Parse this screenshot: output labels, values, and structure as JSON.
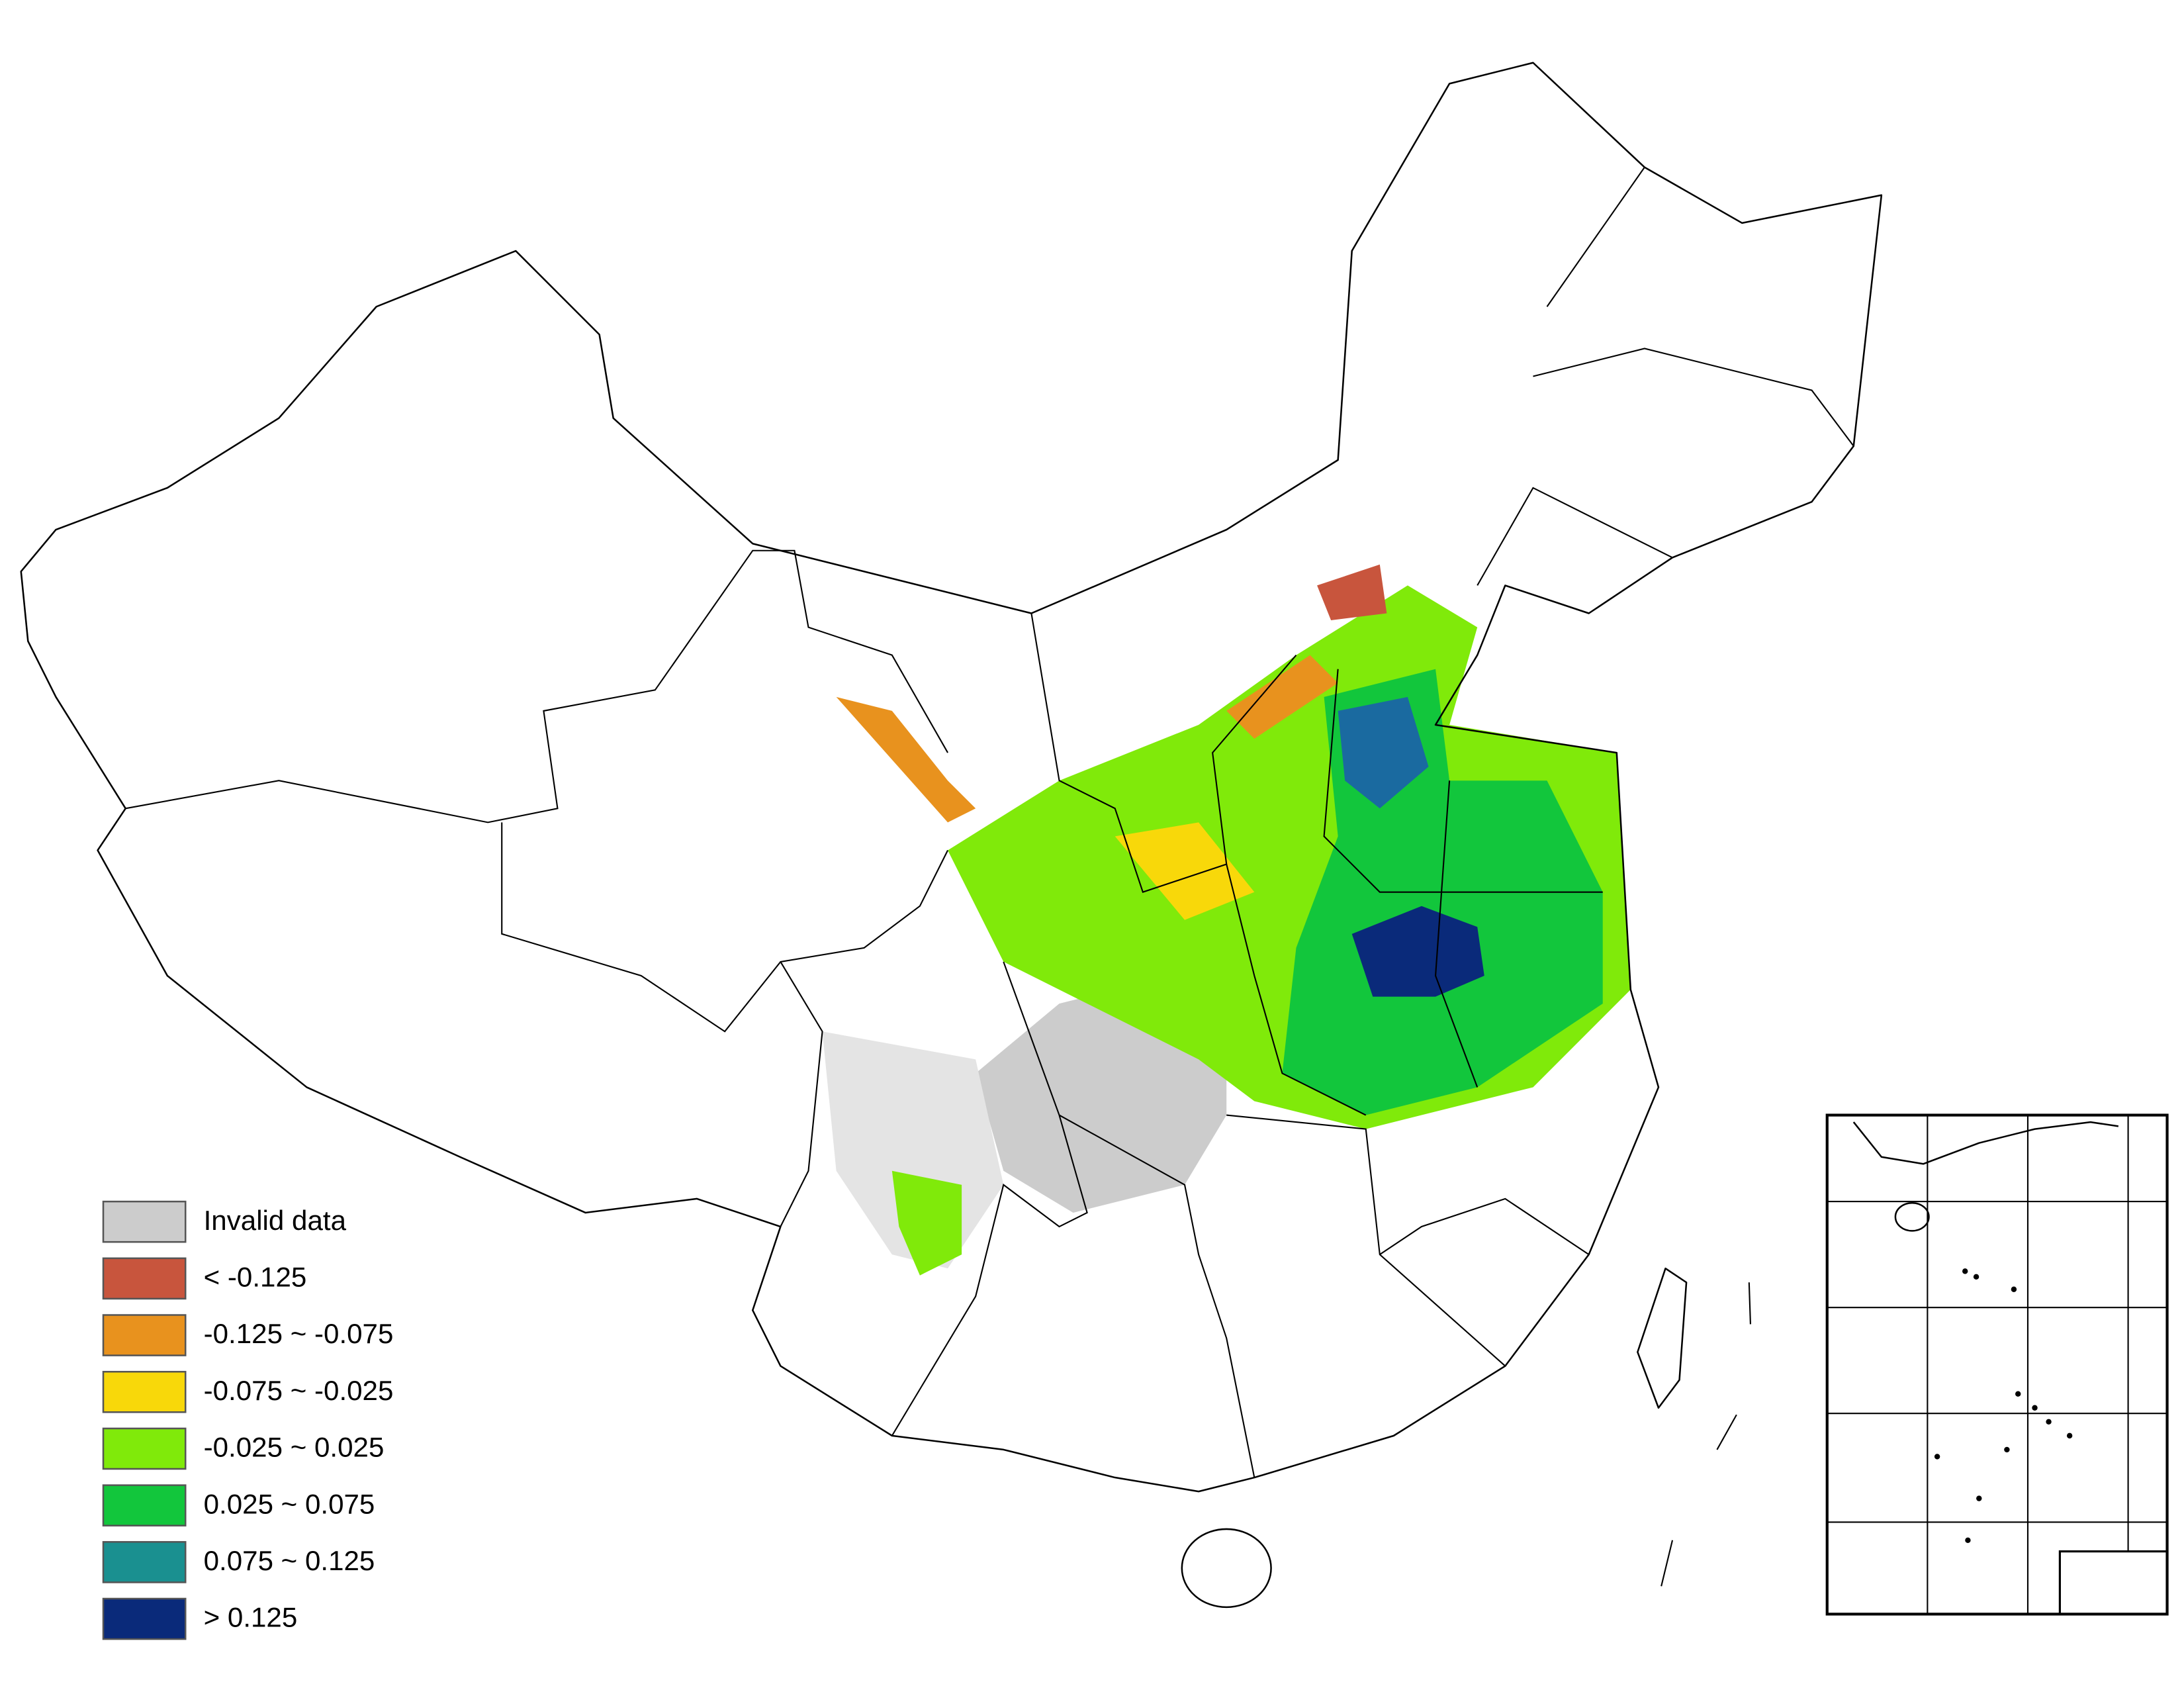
{
  "legend": [
    {
      "label": "Invalid data",
      "color": "#cccccc"
    },
    {
      "label": "< -0.125",
      "color": "#c8553d"
    },
    {
      "label": "-0.125 ~ -0.075",
      "color": "#e8921e"
    },
    {
      "label": "-0.075 ~ -0.025",
      "color": "#f8d80a"
    },
    {
      "label": "-0.025 ~ 0.025",
      "color": "#80ea0a"
    },
    {
      "label": "0.025 ~ 0.075",
      "color": "#12c63c"
    },
    {
      "label": "0.075 ~ 0.125",
      "color": "#1a9090"
    },
    {
      "label": "> 0.125",
      "color": "#0a2a7a"
    }
  ]
}
